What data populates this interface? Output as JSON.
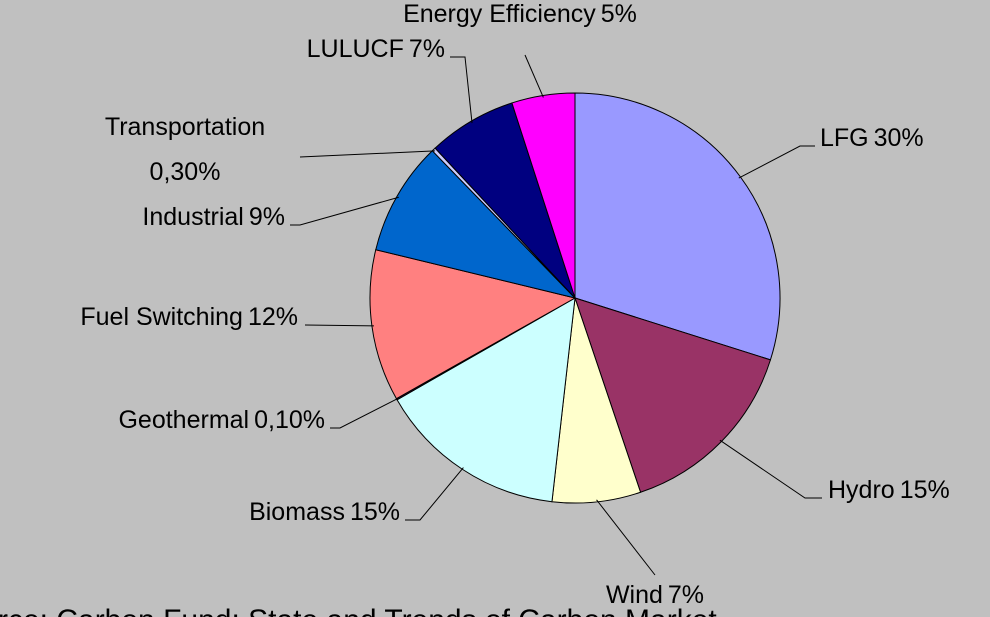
{
  "chart_data": {
    "type": "pie",
    "categories": [
      "LFG",
      "Hydro",
      "Wind",
      "Biomass",
      "Geothermal",
      "Fuel Switching",
      "Industrial",
      "Transportation",
      "LULUCF",
      "Energy Efficiency"
    ],
    "values": [
      30,
      15,
      7,
      15,
      0.1,
      12,
      9,
      0.3,
      7,
      5
    ],
    "value_labels": [
      "30%",
      "15%",
      "7%",
      "15%",
      "0,10%",
      "12%",
      "9%",
      "0,30%",
      "7%",
      "5%"
    ],
    "colors": [
      "#9999ff",
      "#993366",
      "#ffffcc",
      "#ccffff",
      "#660066",
      "#ff8080",
      "#0066cc",
      "#ccccff",
      "#000080",
      "#ff00ff"
    ],
    "source": "rce: Carbon Fund: State and Trends of Carbon Market"
  }
}
